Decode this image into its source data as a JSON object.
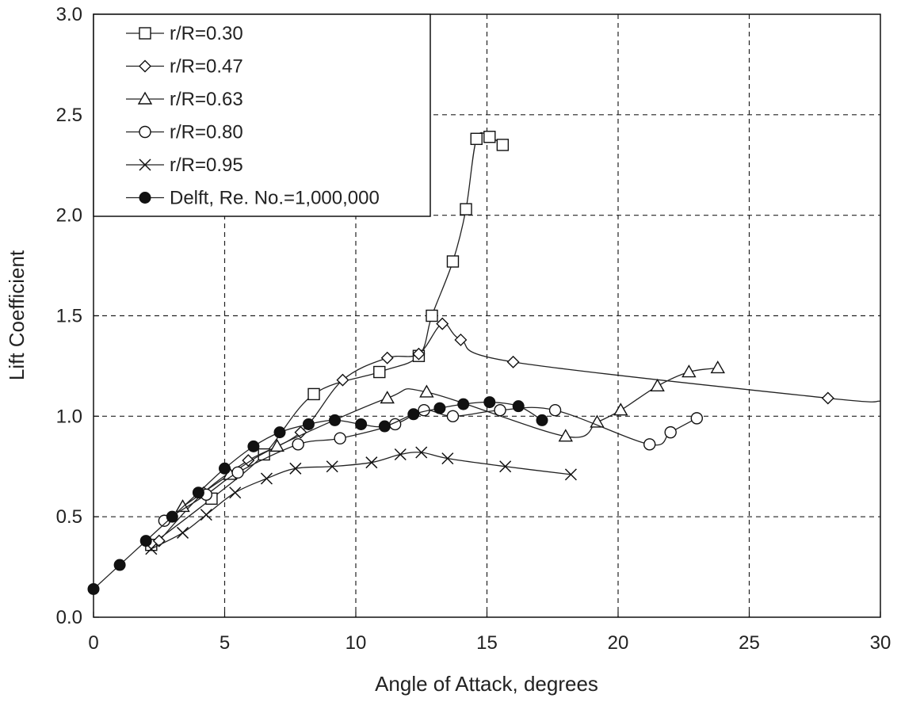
{
  "chart_data": {
    "type": "scatter",
    "title": "",
    "xlabel": "Angle of Attack, degrees",
    "ylabel": "Lift Coefficient",
    "xlim": [
      0,
      30
    ],
    "ylim": [
      0,
      3.0
    ],
    "x_ticks": [
      "0",
      "5",
      "10",
      "15",
      "20",
      "25",
      "30"
    ],
    "y_ticks": [
      "0.0",
      "0.5",
      "1.0",
      "1.5",
      "2.0",
      "2.5",
      "3.0"
    ],
    "grid": "dashed",
    "legend_position": "top-left",
    "series": [
      {
        "name": "r/R=0.30",
        "marker": "square",
        "points": [
          [
            2.2,
            0.36
          ],
          [
            4.5,
            0.59
          ],
          [
            6.5,
            0.81
          ],
          [
            8.4,
            1.11
          ],
          [
            10.9,
            1.22
          ],
          [
            12.4,
            1.3
          ],
          [
            12.9,
            1.5
          ],
          [
            13.7,
            1.77
          ],
          [
            14.2,
            2.03
          ],
          [
            14.6,
            2.38
          ],
          [
            15.1,
            2.39
          ],
          [
            15.6,
            2.35
          ]
        ]
      },
      {
        "name": "r/R=0.47",
        "marker": "diamond",
        "points": [
          [
            2.5,
            0.38
          ],
          [
            4.2,
            0.62
          ],
          [
            5.9,
            0.78
          ],
          [
            7.9,
            0.92
          ],
          [
            9.5,
            1.18
          ],
          [
            11.2,
            1.29
          ],
          [
            12.4,
            1.31
          ],
          [
            13.3,
            1.46
          ],
          [
            14.0,
            1.38
          ],
          [
            16.0,
            1.27
          ],
          [
            28.0,
            1.09
          ]
        ]
      },
      {
        "name": "r/R=0.63",
        "marker": "triangle",
        "points": [
          [
            3.4,
            0.55
          ],
          [
            5.2,
            0.71
          ],
          [
            7.0,
            0.85
          ],
          [
            11.2,
            1.09
          ],
          [
            12.7,
            1.12
          ],
          [
            18.0,
            0.9
          ],
          [
            19.2,
            0.97
          ],
          [
            20.1,
            1.03
          ],
          [
            21.5,
            1.15
          ],
          [
            22.7,
            1.22
          ],
          [
            23.8,
            1.24
          ]
        ]
      },
      {
        "name": "r/R=0.80",
        "marker": "circle-open",
        "points": [
          [
            2.7,
            0.48
          ],
          [
            4.3,
            0.61
          ],
          [
            5.5,
            0.72
          ],
          [
            7.8,
            0.86
          ],
          [
            9.4,
            0.89
          ],
          [
            11.5,
            0.96
          ],
          [
            12.6,
            1.03
          ],
          [
            13.7,
            1.0
          ],
          [
            15.5,
            1.03
          ],
          [
            17.6,
            1.03
          ],
          [
            21.2,
            0.86
          ],
          [
            22.0,
            0.92
          ],
          [
            23.0,
            0.99
          ]
        ]
      },
      {
        "name": "r/R=0.95",
        "marker": "x",
        "points": [
          [
            2.2,
            0.34
          ],
          [
            3.4,
            0.42
          ],
          [
            4.3,
            0.51
          ],
          [
            5.4,
            0.62
          ],
          [
            6.6,
            0.69
          ],
          [
            7.7,
            0.74
          ],
          [
            9.1,
            0.75
          ],
          [
            10.6,
            0.77
          ],
          [
            11.7,
            0.81
          ],
          [
            12.5,
            0.82
          ],
          [
            13.5,
            0.79
          ],
          [
            15.7,
            0.75
          ],
          [
            18.2,
            0.71
          ]
        ]
      },
      {
        "name": "Delft, Re. No.=1,000,000",
        "marker": "circle-filled",
        "points": [
          [
            0.0,
            0.14
          ],
          [
            1.0,
            0.26
          ],
          [
            2.0,
            0.38
          ],
          [
            3.0,
            0.5
          ],
          [
            4.0,
            0.62
          ],
          [
            5.0,
            0.74
          ],
          [
            6.1,
            0.85
          ],
          [
            7.1,
            0.92
          ],
          [
            8.2,
            0.96
          ],
          [
            9.2,
            0.98
          ],
          [
            10.2,
            0.96
          ],
          [
            11.1,
            0.95
          ],
          [
            12.2,
            1.01
          ],
          [
            13.2,
            1.04
          ],
          [
            14.1,
            1.06
          ],
          [
            15.1,
            1.07
          ],
          [
            16.2,
            1.05
          ],
          [
            17.1,
            0.98
          ]
        ]
      }
    ]
  }
}
